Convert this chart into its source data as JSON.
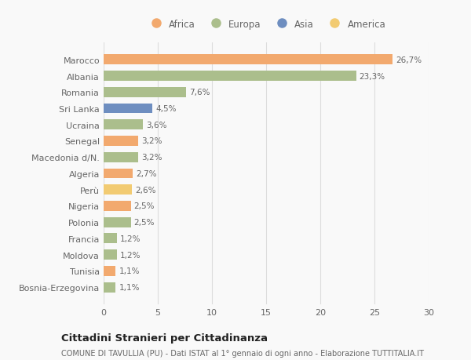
{
  "categories": [
    "Marocco",
    "Albania",
    "Romania",
    "Sri Lanka",
    "Ucraina",
    "Senegal",
    "Macedonia d/N.",
    "Algeria",
    "Perù",
    "Nigeria",
    "Polonia",
    "Francia",
    "Moldova",
    "Tunisia",
    "Bosnia-Erzegovina"
  ],
  "values": [
    26.7,
    23.3,
    7.6,
    4.5,
    3.6,
    3.2,
    3.2,
    2.7,
    2.6,
    2.5,
    2.5,
    1.2,
    1.2,
    1.1,
    1.1
  ],
  "labels": [
    "26,7%",
    "23,3%",
    "7,6%",
    "4,5%",
    "3,6%",
    "3,2%",
    "3,2%",
    "2,7%",
    "2,6%",
    "2,5%",
    "2,5%",
    "1,2%",
    "1,2%",
    "1,1%",
    "1,1%"
  ],
  "continents": [
    "Africa",
    "Europa",
    "Europa",
    "Asia",
    "Europa",
    "Africa",
    "Europa",
    "Africa",
    "America",
    "Africa",
    "Europa",
    "Europa",
    "Europa",
    "Africa",
    "Europa"
  ],
  "colors": {
    "Africa": "#F2A96E",
    "Europa": "#ABBE8C",
    "Asia": "#6E8EC0",
    "America": "#F2CB72"
  },
  "legend_order": [
    "Africa",
    "Europa",
    "Asia",
    "America"
  ],
  "xlim": [
    0,
    30
  ],
  "xticks": [
    0,
    5,
    10,
    15,
    20,
    25,
    30
  ],
  "title": "Cittadini Stranieri per Cittadinanza",
  "subtitle": "COMUNE DI TAVULLIA (PU) - Dati ISTAT al 1° gennaio di ogni anno - Elaborazione TUTTITALIA.IT",
  "bg_color": "#f9f9f9",
  "bar_height": 0.62,
  "grid_color": "#dddddd",
  "label_fontsize": 7.5,
  "ytick_fontsize": 8.0,
  "xtick_fontsize": 8.0,
  "legend_fontsize": 8.5,
  "title_fontsize": 9.5,
  "subtitle_fontsize": 7.0
}
